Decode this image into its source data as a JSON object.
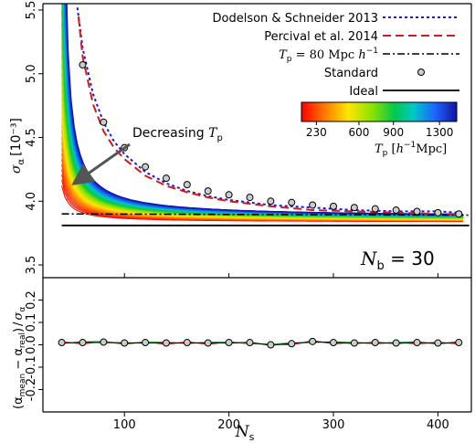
{
  "chart_data": [
    {
      "type": "line",
      "panel": "top",
      "ylabel": "σ_α [10⁻³]",
      "ylim": [
        3.4,
        5.55
      ],
      "xlim": [
        22,
        432
      ],
      "yticks": [
        "3.5",
        "4.0",
        "4.5",
        "5.0",
        "5.5"
      ],
      "ytick_values": [
        3.5,
        4.0,
        4.5,
        5.0,
        5.5
      ],
      "annotation_text": "Decreasing T_p",
      "nb_label": "N_b = 30",
      "legend_position": "top-right",
      "legend": [
        {
          "label": "Dodelson & Schneider 2013",
          "style": "dotted",
          "color": "#1c1cd8"
        },
        {
          "label": "Percival et al. 2014",
          "style": "dashed",
          "color": "#d21b1b"
        },
        {
          "label": "T_p = 80 Mpc h^-1",
          "style": "dashdot",
          "color": "#000000"
        },
        {
          "label": "Standard",
          "style": "marker",
          "color": "#cccccc"
        },
        {
          "label": "Ideal",
          "style": "solid",
          "color": "#000000"
        }
      ],
      "colorbar": {
        "ticks": [
          "230",
          "600",
          "900",
          "1300"
        ],
        "label": "T_p [h^-1 Mpc]",
        "range": [
          100,
          1450
        ]
      },
      "series": [
        {
          "name": "Dodelson & Schneider 2013",
          "x": [
            55,
            60,
            70,
            80,
            90,
            100,
            120,
            140,
            160,
            180,
            200,
            240,
            280,
            320,
            360,
            400,
            420
          ],
          "values": [
            5.52,
            5.2,
            4.84,
            4.62,
            4.47,
            4.37,
            4.23,
            4.14,
            4.08,
            4.04,
            4.01,
            3.97,
            3.95,
            3.93,
            3.92,
            3.92,
            3.91
          ]
        },
        {
          "name": "Percival et al. 2014",
          "x": [
            56,
            60,
            70,
            80,
            90,
            100,
            120,
            140,
            160,
            180,
            200,
            240,
            280,
            320,
            360,
            400,
            420
          ],
          "values": [
            5.45,
            5.13,
            4.76,
            4.55,
            4.42,
            4.33,
            4.2,
            4.12,
            4.07,
            4.03,
            4.0,
            3.96,
            3.93,
            3.92,
            3.91,
            3.9,
            3.9
          ]
        },
        {
          "name": "Standard",
          "x": [
            60,
            80,
            100,
            120,
            140,
            160,
            180,
            200,
            220,
            240,
            260,
            280,
            300,
            320,
            340,
            360,
            380,
            400,
            420
          ],
          "values": [
            5.07,
            4.62,
            4.42,
            4.27,
            4.18,
            4.13,
            4.08,
            4.05,
            4.03,
            4.0,
            3.99,
            3.97,
            3.96,
            3.95,
            3.94,
            3.93,
            3.92,
            3.91,
            3.9
          ]
        },
        {
          "name": "T_p = 80 Mpc h^-1",
          "x": [
            40,
            430
          ],
          "values": [
            3.9,
            3.89
          ]
        },
        {
          "name": "Ideal",
          "x": [
            40,
            430
          ],
          "values": [
            3.81,
            3.81
          ]
        }
      ]
    },
    {
      "type": "line",
      "panel": "bottom",
      "xlabel": "N_s",
      "ylabel": "(α_mean − α_real) / σ_α",
      "ylim": [
        -0.3,
        0.3
      ],
      "xlim": [
        22,
        432
      ],
      "xticks": [
        "100",
        "200",
        "300",
        "400"
      ],
      "xtick_values": [
        100,
        200,
        300,
        400
      ],
      "yticks": [
        "-0.2",
        "-0.1",
        "0.0",
        "0.1",
        "0.2"
      ],
      "ytick_values": [
        -0.2,
        -0.1,
        0.0,
        0.1,
        0.2
      ],
      "series": [
        {
          "name": "Standard",
          "x": [
            40,
            60,
            80,
            100,
            120,
            140,
            160,
            180,
            200,
            220,
            240,
            260,
            280,
            300,
            320,
            340,
            360,
            380,
            400,
            420
          ],
          "values": [
            0.01,
            0.01,
            0.012,
            0.008,
            0.01,
            0.008,
            0.01,
            0.008,
            0.01,
            0.01,
            0.0,
            0.005,
            0.015,
            0.01,
            0.008,
            0.01,
            0.008,
            0.01,
            0.008,
            0.01
          ]
        }
      ]
    }
  ],
  "labels": {
    "top_ylabel_sigma": "σ",
    "top_ylabel_sub": "α",
    "top_ylabel_unit": "[10⁻³]",
    "bottom_ylabel_main": "(α",
    "bottom_ylabel_mean": "mean",
    "bottom_ylabel_minus": " − α",
    "bottom_ylabel_real": "real",
    "bottom_ylabel_close": ")",
    "bottom_ylabel_slash": "/",
    "bottom_ylabel_sigma": "σ",
    "bottom_ylabel_sigma_sub": "α",
    "xlabel_main": "N",
    "xlabel_sub": "s",
    "annot_main": "Decreasing ",
    "annot_T": "T",
    "annot_sub": "p",
    "nb_N": "N",
    "nb_sub": "b",
    "nb_eq": " = 30",
    "legend_1": "Dodelson & Schneider 2013",
    "legend_2": "Percival et al. 2014",
    "legend_3_T": "T",
    "legend_3_sub": "p",
    "legend_3_rest": " = 80 Mpc ",
    "legend_3_h": "h",
    "legend_3_exp": "−1",
    "legend_4": "Standard",
    "legend_5": "Ideal",
    "cb_T": "T",
    "cb_sub": "p",
    "cb_unit_open": " [",
    "cb_h": "h",
    "cb_exp": "−1",
    "cb_unit_close": "Mpc]"
  },
  "colors": {
    "ideal": "#000000",
    "standard_marker": "#cccccc",
    "dodelson": "#1c1cd8",
    "percival": "#d21b1b",
    "arrow": "#555555"
  }
}
